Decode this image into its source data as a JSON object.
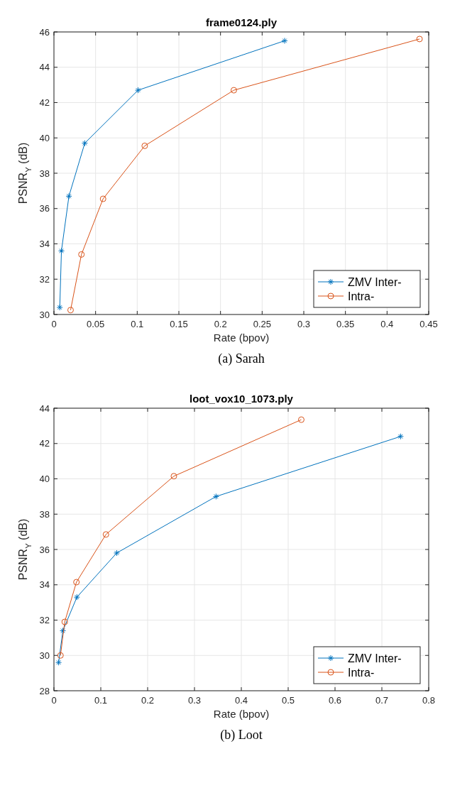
{
  "chart_data": [
    {
      "type": "line",
      "title": "frame0124.ply",
      "xlabel": "Rate (bpov)",
      "ylabel": "PSNR$_{Y}$ (dB)",
      "xlim": [
        0,
        0.45
      ],
      "xticks": [
        0,
        0.05,
        0.1,
        0.15,
        0.2,
        0.25,
        0.3,
        0.35,
        0.4,
        0.45
      ],
      "ylim": [
        30,
        46
      ],
      "yticks": [
        30,
        32,
        34,
        36,
        38,
        40,
        42,
        44,
        46
      ],
      "grid": true,
      "legend": "bottom right",
      "annotations": [
        "(a) Sarah"
      ],
      "series": [
        {
          "name": "ZMV Inter-",
          "color": "#0072bd",
          "marker": "cross",
          "x": [
            0.007,
            0.009,
            0.018,
            0.037,
            0.101,
            0.277
          ],
          "values": [
            30.4,
            33.6,
            36.7,
            39.7,
            42.7,
            45.5
          ]
        },
        {
          "name": "Intra-",
          "color": "#d95319",
          "marker": "circle",
          "x": [
            0.02,
            0.033,
            0.059,
            0.109,
            0.216,
            0.439
          ],
          "values": [
            30.25,
            33.4,
            36.55,
            39.55,
            42.7,
            45.6
          ]
        }
      ]
    },
    {
      "type": "line",
      "title": "loot_vox10_1073.ply",
      "xlabel": "Rate (bpov)",
      "ylabel": "PSNR$_{Y}$ (dB)",
      "xlim": [
        0,
        0.8
      ],
      "xticks": [
        0,
        0.1,
        0.2,
        0.3,
        0.4,
        0.5,
        0.6,
        0.7,
        0.8
      ],
      "ylim": [
        28,
        44
      ],
      "yticks": [
        28,
        30,
        32,
        34,
        36,
        38,
        40,
        42,
        44
      ],
      "grid": true,
      "legend": "bottom right",
      "annotations": [
        "(b) Loot"
      ],
      "series": [
        {
          "name": "ZMV Inter-",
          "color": "#0072bd",
          "marker": "cross",
          "x": [
            0.01,
            0.019,
            0.049,
            0.134,
            0.346,
            0.74
          ],
          "values": [
            29.6,
            31.4,
            33.3,
            35.8,
            39.0,
            42.4
          ]
        },
        {
          "name": "Intra-",
          "color": "#d95319",
          "marker": "circle",
          "x": [
            0.014,
            0.023,
            0.048,
            0.111,
            0.256,
            0.528
          ],
          "values": [
            30.0,
            31.9,
            34.15,
            36.85,
            40.15,
            43.35
          ]
        }
      ]
    }
  ]
}
